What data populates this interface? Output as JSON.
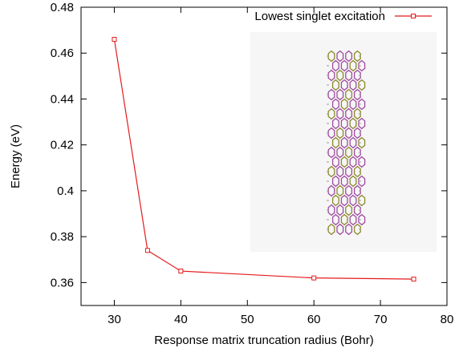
{
  "chart_data": {
    "type": "line",
    "title": "",
    "xlabel": "Response matrix truncation radius (Bohr)",
    "ylabel": "Energy (eV)",
    "xlim": [
      25,
      80
    ],
    "ylim": [
      0.35,
      0.48
    ],
    "xticks": [
      30,
      40,
      50,
      60,
      70,
      80
    ],
    "yticks": [
      0.36,
      0.38,
      0.4,
      0.42,
      0.44,
      0.46,
      0.48
    ],
    "xtick_labels": [
      "30",
      "40",
      "50",
      "60",
      "70",
      "80"
    ],
    "ytick_labels": [
      "0.36",
      "0.38",
      "0.4",
      "0.42",
      "0.44",
      "0.46",
      "0.48"
    ],
    "grid": false,
    "legend_position": "top-right",
    "series": [
      {
        "name": "Lowest singlet excitation",
        "color": "#e41a1c",
        "marker": "square",
        "x": [
          30,
          35,
          40,
          60,
          75
        ],
        "y": [
          0.466,
          0.374,
          0.365,
          0.362,
          0.3615
        ]
      }
    ],
    "inset": {
      "description_icon": "nanoribbon-molecule-structure"
    }
  }
}
